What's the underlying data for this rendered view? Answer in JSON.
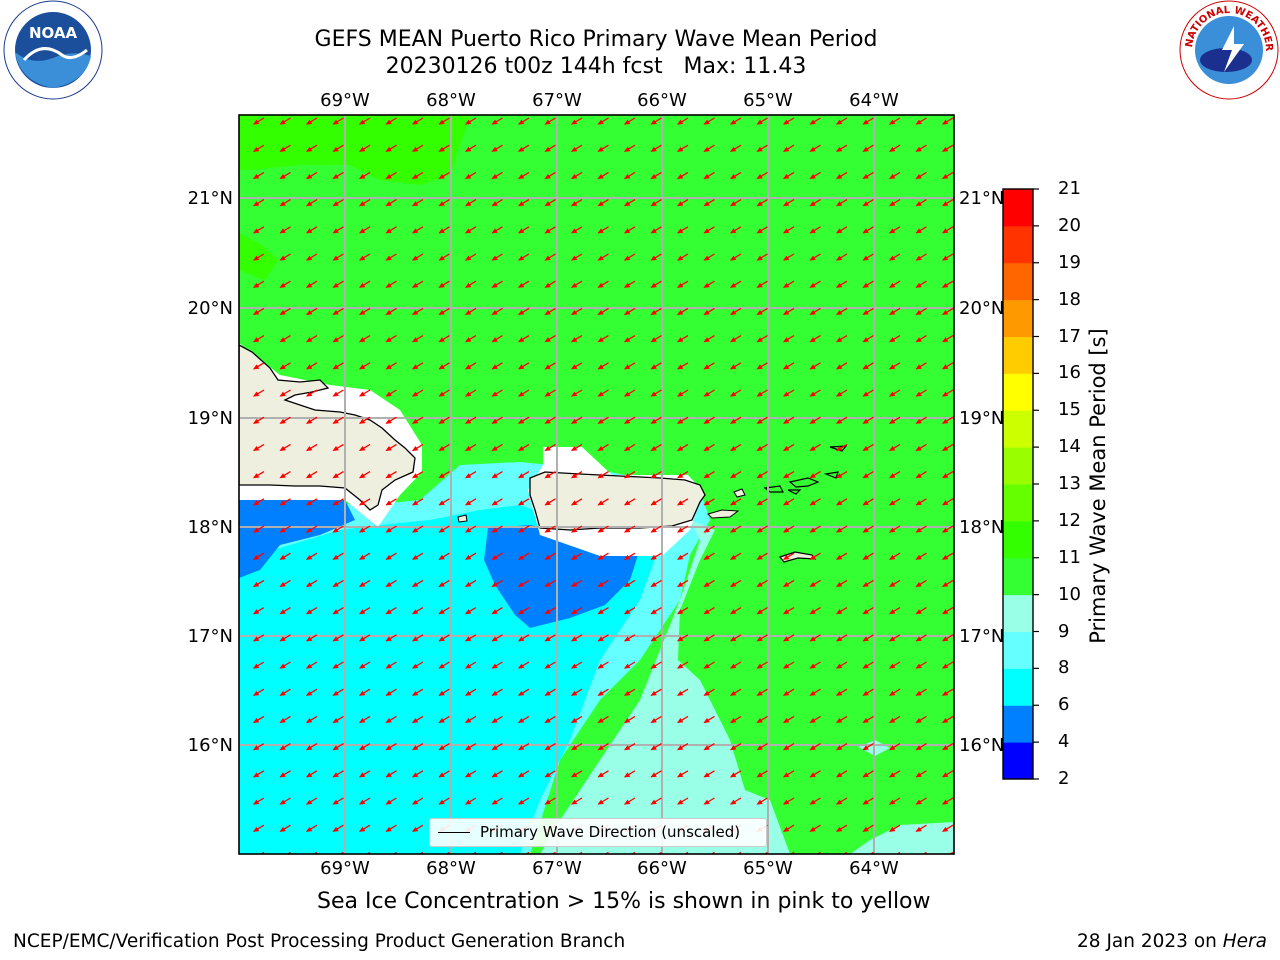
{
  "header": {
    "title": "GEFS MEAN Puerto Rico Primary Wave Mean Period",
    "subtitle": "20230126 t00z 144h fcst   Max: 11.43"
  },
  "map": {
    "lon_labels": [
      "69°W",
      "68°W",
      "67°W",
      "66°W",
      "65°W",
      "64°W"
    ],
    "lat_labels": [
      "21°N",
      "20°N",
      "19°N",
      "18°N",
      "17°N",
      "16°N"
    ],
    "legend_label": "Primary Wave Direction (unscaled)",
    "arrow_color": "#ff0000"
  },
  "colorbar": {
    "title": "Primary Wave Mean Period [s]",
    "ticks": [
      "2",
      "4",
      "6",
      "8",
      "9",
      "10",
      "11",
      "12",
      "13",
      "14",
      "15",
      "16",
      "17",
      "18",
      "19",
      "20",
      "21"
    ],
    "colors": [
      "#0000ff",
      "#0080ff",
      "#00ffff",
      "#66ffff",
      "#99ffe6",
      "#33ff33",
      "#33ff00",
      "#66ff00",
      "#99ff00",
      "#ccff00",
      "#ffff00",
      "#ffcc00",
      "#ff9900",
      "#ff6600",
      "#ff3300",
      "#ff0000"
    ]
  },
  "footer": {
    "note": "Sea Ice Concentration > 15% is shown in pink to yellow",
    "left": "NCEP/EMC/Verification Post Processing Product Generation Branch",
    "right_prefix": "28 Jan 2023 on ",
    "right_italic": "Hera"
  },
  "logos": {
    "noaa_text": "NOAA",
    "nws_text": "NATIONAL WEATHER SERVICE"
  }
}
